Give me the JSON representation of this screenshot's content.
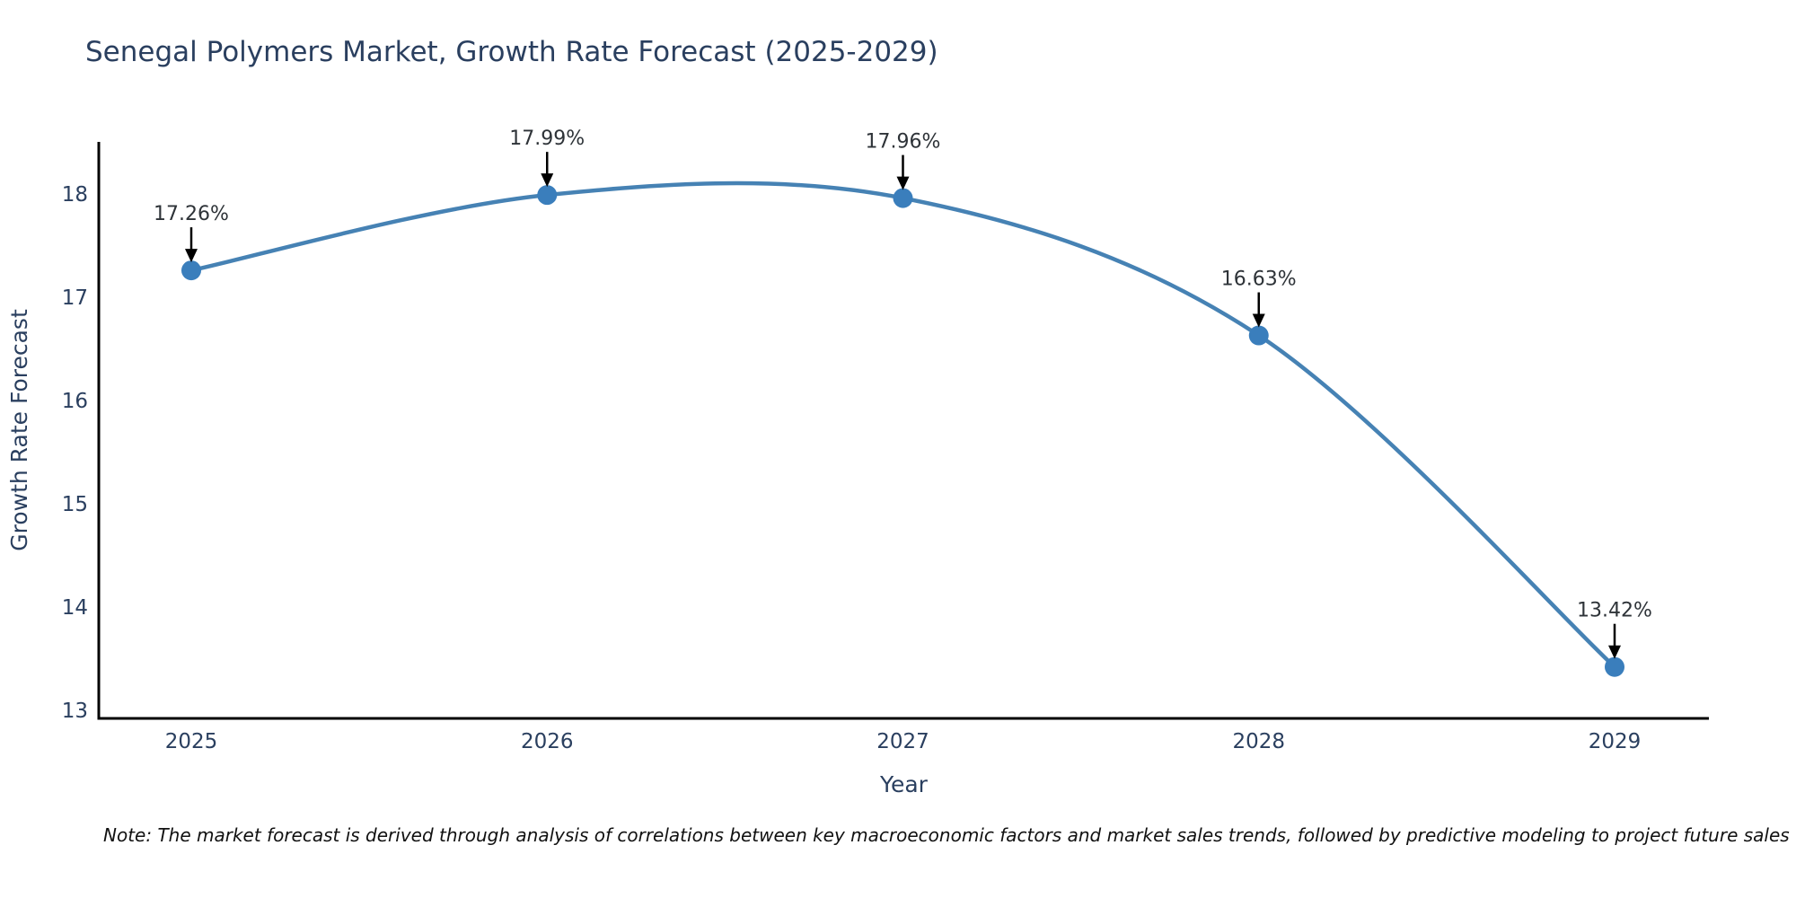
{
  "note": "Note: The market forecast is derived through analysis of correlations between key macroeconomic factors and market sales trends, followed by predictive modeling to project future sales",
  "chart_data": {
    "type": "line",
    "title": "Senegal Polymers Market, Growth Rate Forecast (2025-2029)",
    "xlabel": "Year",
    "ylabel": "Growth Rate Forecast",
    "x": [
      2025,
      2026,
      2027,
      2028,
      2029
    ],
    "values": [
      17.26,
      17.99,
      17.96,
      16.63,
      13.42
    ],
    "point_labels": [
      "17.26%",
      "17.99%",
      "17.96%",
      "16.63%",
      "13.42%"
    ],
    "yticks": [
      13,
      14,
      15,
      16,
      17,
      18
    ],
    "ylim": [
      12.92,
      18.5
    ],
    "line_shape": "spline",
    "grid": false,
    "legend": "none",
    "colors": {
      "line": "#4682b4",
      "marker": "#3a7ebc",
      "text": "#2a3f5f",
      "axis": "#000000",
      "annotation_text": "#2e3338",
      "annotation_arrow": "#000000"
    }
  }
}
